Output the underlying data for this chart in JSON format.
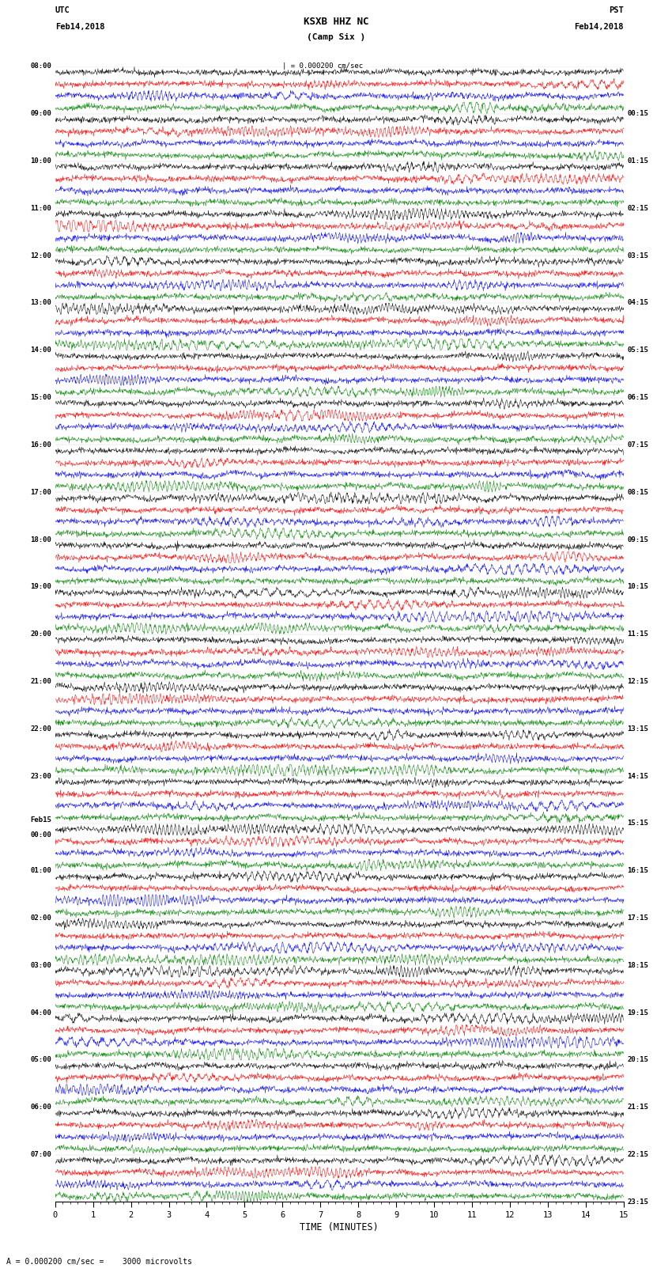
{
  "title": "KSXB HHZ NC",
  "subtitle": "(Camp Six )",
  "left_label_top": "UTC",
  "left_label_date": "Feb14,2018",
  "right_label_top": "PST",
  "right_label_date": "Feb14,2018",
  "xlabel": "TIME (MINUTES)",
  "scale_label": "A = 0.000200 cm/sec =    3000 microvolts",
  "scale_bar_label": "| = 0.000200 cm/sec",
  "left_times": [
    "08:00",
    "09:00",
    "10:00",
    "11:00",
    "12:00",
    "13:00",
    "14:00",
    "15:00",
    "16:00",
    "17:00",
    "18:00",
    "19:00",
    "20:00",
    "21:00",
    "22:00",
    "23:00",
    "Feb15\n00:00",
    "01:00",
    "02:00",
    "03:00",
    "04:00",
    "05:00",
    "06:00",
    "07:00"
  ],
  "right_times": [
    "00:15",
    "01:15",
    "02:15",
    "03:15",
    "04:15",
    "05:15",
    "06:15",
    "07:15",
    "08:15",
    "09:15",
    "10:15",
    "11:15",
    "12:15",
    "13:15",
    "14:15",
    "15:15",
    "16:15",
    "17:15",
    "18:15",
    "19:15",
    "20:15",
    "21:15",
    "22:15",
    "23:15"
  ],
  "trace_colors": [
    "black",
    "red",
    "blue",
    "green"
  ],
  "n_hours": 24,
  "traces_per_hour": 4,
  "x_min": 0,
  "x_max": 15,
  "x_ticks": [
    0,
    1,
    2,
    3,
    4,
    5,
    6,
    7,
    8,
    9,
    10,
    11,
    12,
    13,
    14,
    15
  ],
  "amplitude_scale": 0.38,
  "noise_scale": 0.12,
  "background_color": "white",
  "fig_width": 8.5,
  "fig_height": 16.13
}
